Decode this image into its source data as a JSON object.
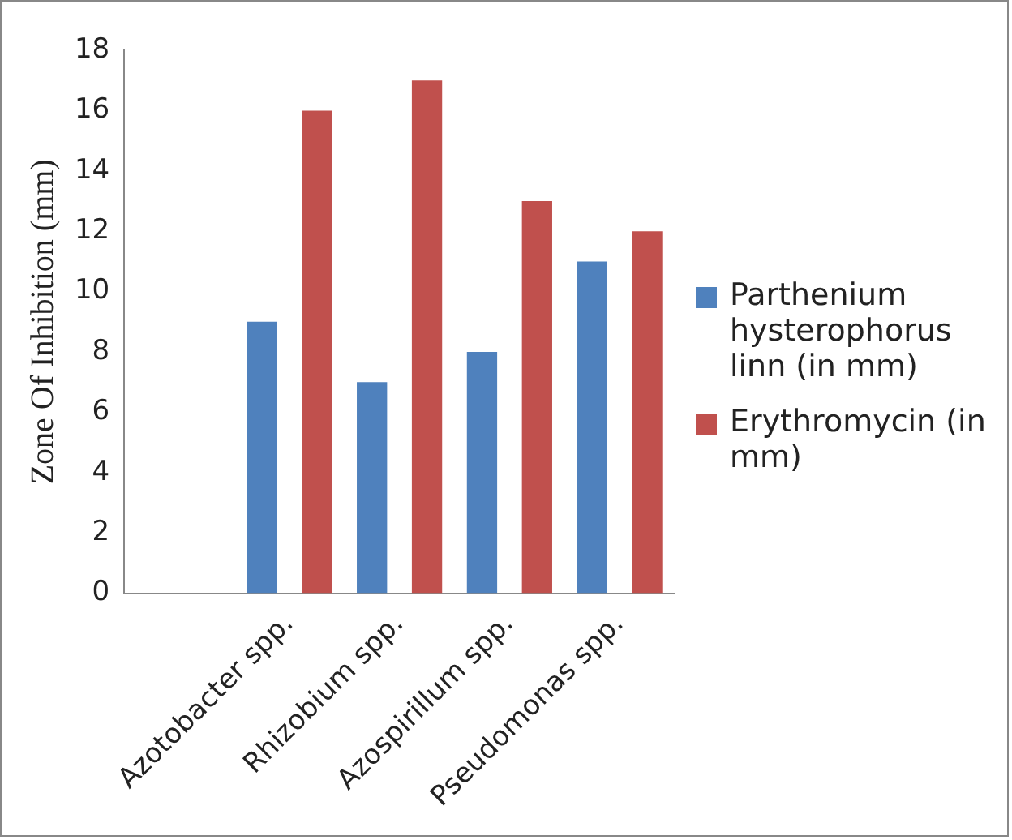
{
  "chart_data": {
    "type": "bar",
    "ylabel": "Zone Of Inhibition (mm)",
    "categories": [
      null,
      "Azotobacter spp.",
      "Rhizobium spp.",
      "Azospirillum spp.",
      "Pseudomonas spp."
    ],
    "series": [
      {
        "name": "Parthenium hysterophorus linn  (in mm)",
        "color": "#4f81bd",
        "values": [
          null,
          9,
          7,
          8,
          11
        ]
      },
      {
        "name": "Erythromycin (in mm)",
        "color": "#c0504d",
        "values": [
          null,
          16,
          17,
          13,
          12
        ]
      }
    ],
    "ylim": [
      0,
      18
    ],
    "yticks": [
      0,
      2,
      4,
      6,
      8,
      10,
      12,
      14,
      16,
      18
    ],
    "grid": false,
    "legend": "right"
  }
}
